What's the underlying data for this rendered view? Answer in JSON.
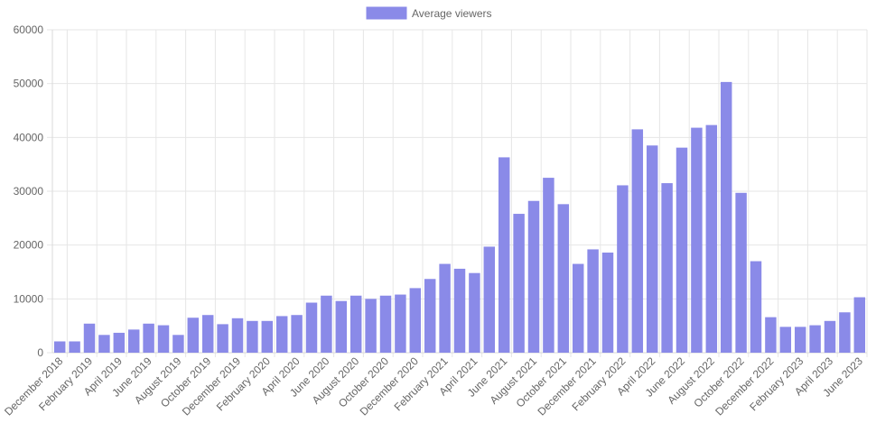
{
  "chart_data": {
    "type": "bar",
    "title": "",
    "xlabel": "",
    "ylabel": "",
    "legend": {
      "position": "top",
      "label": "Average viewers"
    },
    "ylim": [
      0,
      60000
    ],
    "y_ticks": [
      "60000",
      "50000",
      "40000",
      "30000",
      "20000",
      "10000",
      "0"
    ],
    "bar_color": "#8a8ae8",
    "grid": true,
    "categories": [
      "December 2018",
      "January 2019",
      "February 2019",
      "March 2019",
      "April 2019",
      "May 2019",
      "June 2019",
      "July 2019",
      "August 2019",
      "September 2019",
      "October 2019",
      "November 2019",
      "December 2019",
      "January 2020",
      "February 2020",
      "March 2020",
      "April 2020",
      "May 2020",
      "June 2020",
      "July 2020",
      "August 2020",
      "September 2020",
      "October 2020",
      "November 2020",
      "December 2020",
      "January 2021",
      "February 2021",
      "March 2021",
      "April 2021",
      "May 2021",
      "June 2021",
      "July 2021",
      "August 2021",
      "September 2021",
      "October 2021",
      "November 2021",
      "December 2021",
      "January 2022",
      "February 2022",
      "March 2022",
      "April 2022",
      "May 2022",
      "June 2022",
      "July 2022",
      "August 2022",
      "September 2022",
      "October 2022",
      "November 2022",
      "December 2022",
      "January 2023",
      "February 2023",
      "March 2023",
      "April 2023",
      "May 2023",
      "June 2023"
    ],
    "shown_x_labels": [
      "December 2018",
      "February 2019",
      "April 2019",
      "June 2019",
      "August 2019",
      "October 2019",
      "December 2019",
      "February 2020",
      "April 2020",
      "June 2020",
      "August 2020",
      "October 2020",
      "December 2020",
      "February 2021",
      "April 2021",
      "June 2021",
      "August 2021",
      "October 2021",
      "December 2021",
      "February 2022",
      "April 2022",
      "June 2022",
      "August 2022",
      "October 2022",
      "December 2022",
      "February 2023",
      "April 2023",
      "June 2023"
    ],
    "series": [
      {
        "name": "Average viewers",
        "values": [
          2100,
          2100,
          5400,
          3300,
          3700,
          4300,
          5400,
          5100,
          3300,
          6500,
          7000,
          5300,
          6400,
          5900,
          5900,
          6800,
          7000,
          9300,
          10600,
          9600,
          10600,
          10000,
          10600,
          10800,
          12000,
          13700,
          16500,
          15600,
          14800,
          19700,
          36300,
          25800,
          28200,
          32500,
          27600,
          16500,
          19200,
          18600,
          31100,
          41500,
          38500,
          31500,
          38100,
          41800,
          42300,
          50300,
          29700,
          17000,
          6600,
          4800,
          4800,
          5100,
          5900,
          7500,
          10300
        ]
      }
    ]
  }
}
